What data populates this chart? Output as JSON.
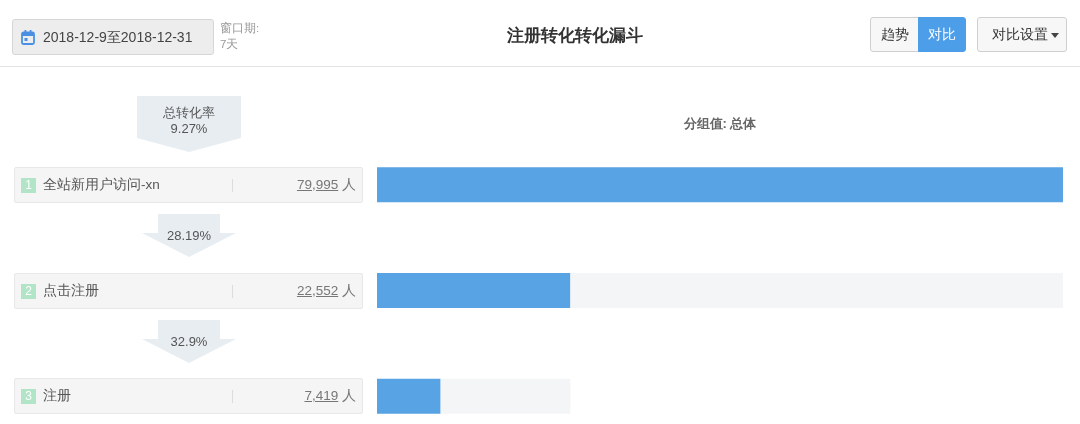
{
  "chart_data": {
    "type": "bar",
    "orientation": "horizontal",
    "stacked": true,
    "title": "注册转化转化漏斗",
    "subtitle": "分组值: 总体",
    "categories": [
      "全站新用户访问-xn",
      "点击注册",
      "注册"
    ],
    "series": [
      {
        "color": "#57a3e3",
        "values": [
          79995,
          22552,
          7419
        ],
        "value_labels": [
          "79,995 人",
          "22,552 人",
          "7,419 人"
        ]
      },
      {
        "color": "#f4f5f7",
        "values": [
          null,
          57443,
          15133
        ]
      }
    ],
    "tick_labels": "y",
    "annotations": [
      "2018-12-9至2018-12-31",
      "窗口期:",
      "7天",
      "趋势",
      "对比",
      "对比设置",
      "总转化率",
      "9.27%",
      "28.19%",
      "32.9%",
      "1",
      "2",
      "3"
    ]
  }
}
